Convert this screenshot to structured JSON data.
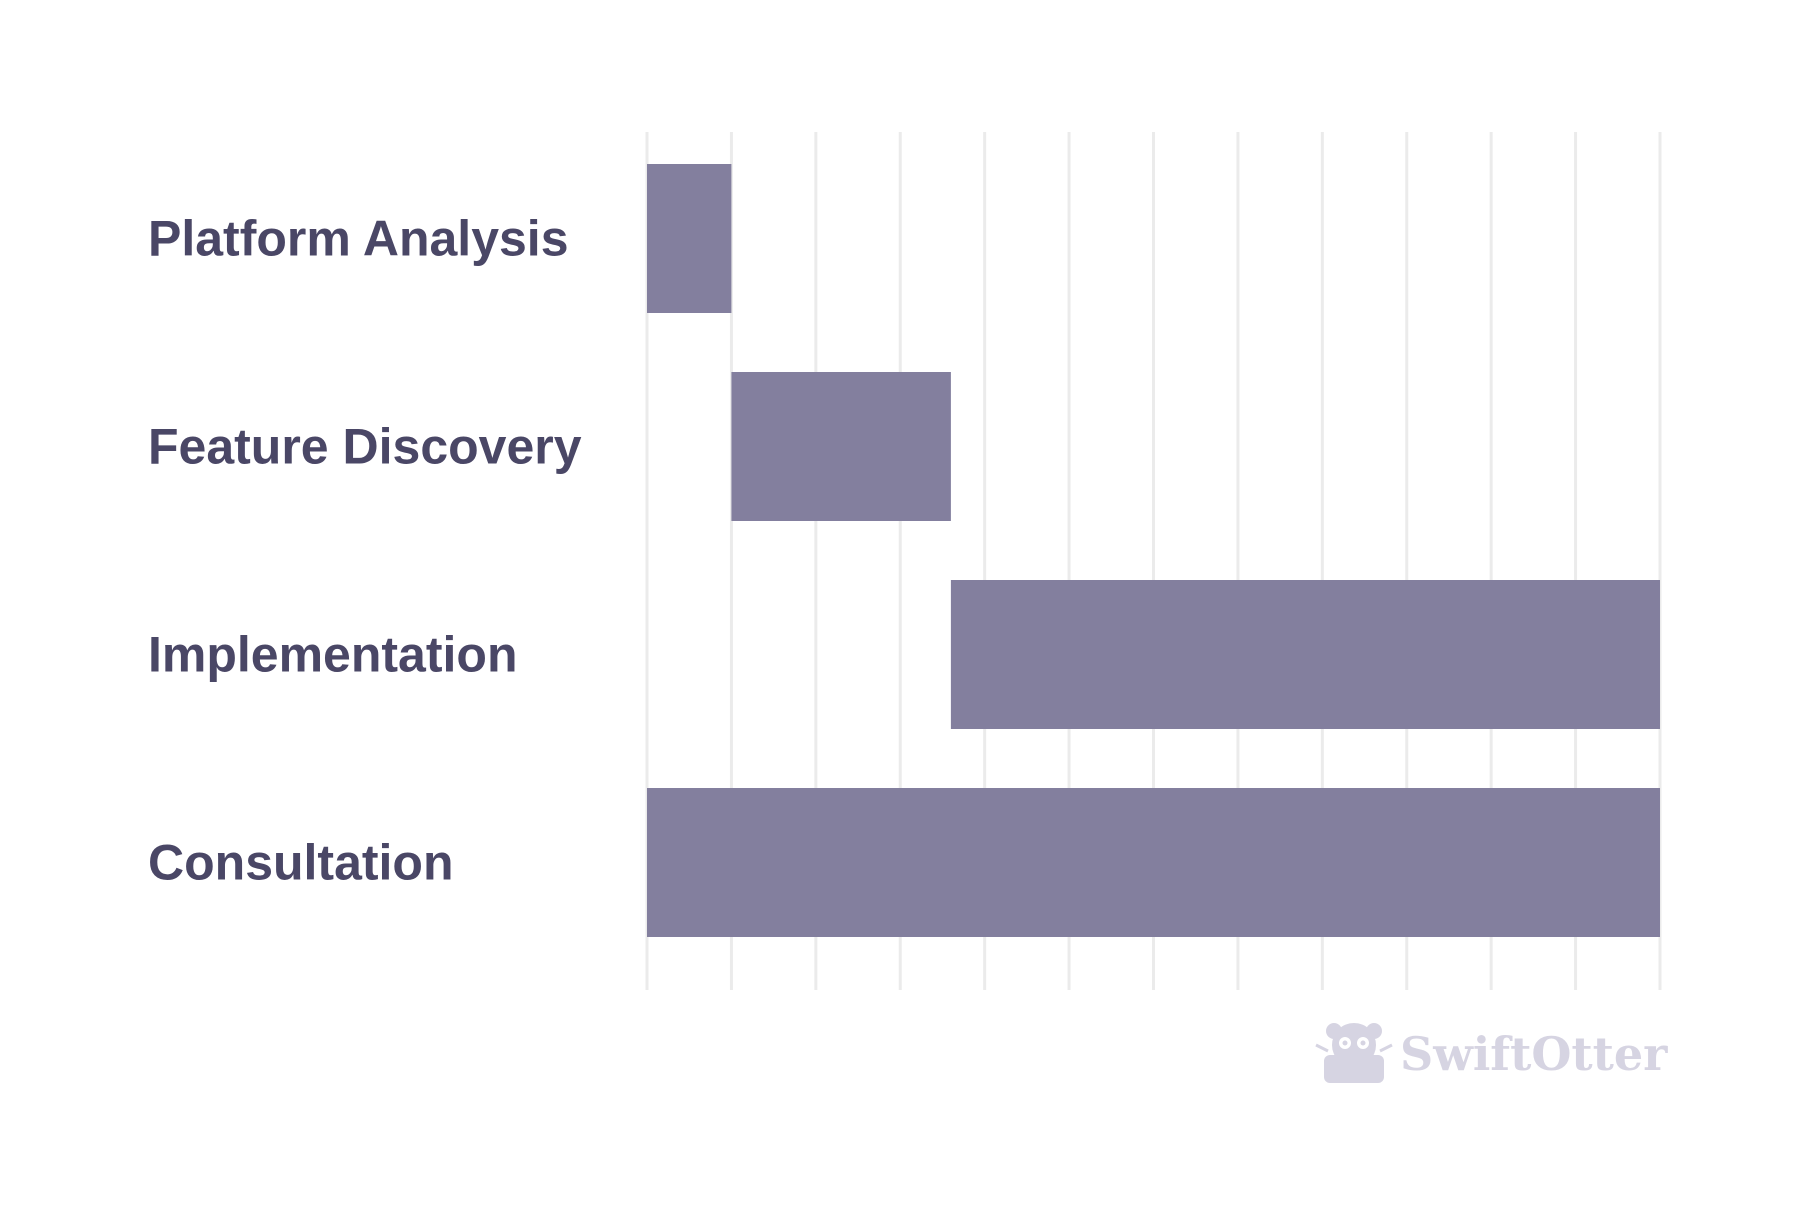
{
  "chart_data": {
    "type": "gantt",
    "tasks": [
      {
        "name": "Platform Analysis",
        "start": 0,
        "end": 1
      },
      {
        "name": "Feature Discovery",
        "start": 1,
        "end": 3.6
      },
      {
        "name": "Implementation",
        "start": 3.6,
        "end": 12
      },
      {
        "name": "Consultation",
        "start": 0,
        "end": 12
      }
    ],
    "xlim": [
      0,
      12
    ],
    "gridlines": 13,
    "grid": true,
    "legend": "none"
  },
  "colors": {
    "bar": "#837f9e",
    "label": "#4a4766",
    "grid": "#ebebeb",
    "watermark": "#d6d4e2"
  },
  "watermark": {
    "text": "SwiftOtter",
    "icon": "otter-icon"
  }
}
